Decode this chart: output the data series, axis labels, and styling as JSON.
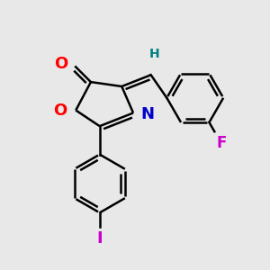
{
  "background_color": "#e8e8e8",
  "bond_color": "#000000",
  "bond_width": 1.8,
  "figsize": [
    3.0,
    3.0
  ],
  "dpi": 100,
  "colors": {
    "O": "#ff0000",
    "N": "#0000cc",
    "F": "#cc00cc",
    "I": "#cc00cc",
    "H": "#008080",
    "C": "#000000"
  }
}
